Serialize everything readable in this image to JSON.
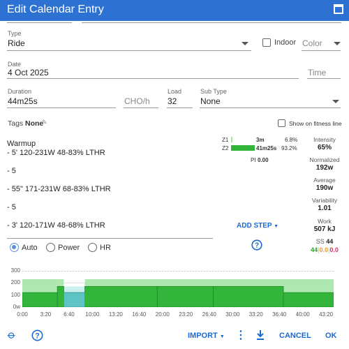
{
  "window": {
    "title": "Edit Calendar Entry"
  },
  "colors": {
    "accent": "#2d72d2",
    "link": "#1a6ad1",
    "zone2": "#33b53b",
    "zone1": "#a6e4a8",
    "highlight": "#5ec3c3"
  },
  "type": {
    "label": "Type",
    "value": "Ride",
    "indoor_label": "Indoor",
    "color_placeholder": "Color"
  },
  "date": {
    "label": "Date",
    "value": "4 Oct 2025",
    "time_placeholder": "Time"
  },
  "duration": {
    "label": "Duration",
    "value": "44m25s"
  },
  "cho": {
    "placeholder": "CHO/h"
  },
  "load": {
    "label": "Load",
    "value": "32"
  },
  "subtype": {
    "label": "Sub Type",
    "value": "None"
  },
  "tags": {
    "label": "Tags",
    "value": "None"
  },
  "fitness": {
    "label": "Show on fitness line"
  },
  "workout_lines": [
    "Warmup",
    "- 5' 120-231W 48-83% LTHR",
    "- 5",
    "- 55\" 171-231W 68-83% LTHR",
    "- 5",
    "- 3' 120-171W 48-68% LTHR"
  ],
  "zones": [
    {
      "name": "Z1",
      "time": "3m",
      "pct": "6.8%",
      "fraction": 0.068
    },
    {
      "name": "Z2",
      "time": "41m25s",
      "pct": "93.2%",
      "fraction": 0.932
    }
  ],
  "pi": {
    "label": "PI",
    "value": "0.00"
  },
  "stats": [
    {
      "label": "Intensity",
      "value": "65%"
    },
    {
      "label": "Normalized",
      "value": "192w"
    },
    {
      "label": "Average",
      "value": "190w"
    },
    {
      "label": "Variability",
      "value": "1.01"
    },
    {
      "label": "Work",
      "value": "507 kJ"
    }
  ],
  "ss": {
    "label": "SS",
    "value": "44",
    "v1": "44",
    "v2": "0.0",
    "v3": "0.0",
    "sep": "|"
  },
  "add_step_label": "ADD STEP",
  "radios": [
    {
      "label": "Auto",
      "selected": true
    },
    {
      "label": "Power",
      "selected": false
    },
    {
      "label": "HR",
      "selected": false
    }
  ],
  "chart_data": {
    "type": "area",
    "y_ticks": [
      "300",
      "200",
      "100",
      "0w"
    ],
    "x_ticks": [
      "0:00",
      "3:20",
      "6:40",
      "10:00",
      "13:20",
      "16:40",
      "20:00",
      "23:20",
      "26:40",
      "30:00",
      "33:20",
      "36:40",
      "40:00",
      "43:20"
    ],
    "ylim": [
      0,
      300
    ],
    "xlim_seconds": [
      0,
      2665
    ],
    "ranges": [
      {
        "start": 0,
        "end": 300,
        "low": 120,
        "high": 231
      },
      {
        "start": 300,
        "end": 355,
        "low": 171,
        "high": 231
      },
      {
        "start": 355,
        "end": 535,
        "low": 120,
        "high": 171
      },
      {
        "start": 535,
        "end": 2665,
        "low": 120,
        "high": 231
      }
    ],
    "steps": [
      {
        "start": 0,
        "end": 300,
        "value": 120
      },
      {
        "start": 300,
        "end": 355,
        "value": 171
      },
      {
        "start": 355,
        "end": 535,
        "value": 120
      },
      {
        "start": 535,
        "end": 1155,
        "value": 171
      },
      {
        "start": 1155,
        "end": 1635,
        "value": 171
      },
      {
        "start": 1635,
        "end": 2235,
        "value": 171
      },
      {
        "start": 2235,
        "end": 2665,
        "value": 120
      }
    ],
    "highlight": {
      "start": 355,
      "end": 535,
      "value": 120
    }
  },
  "footer": {
    "import_label": "IMPORT",
    "cancel_label": "CANCEL",
    "ok_label": "OK"
  }
}
